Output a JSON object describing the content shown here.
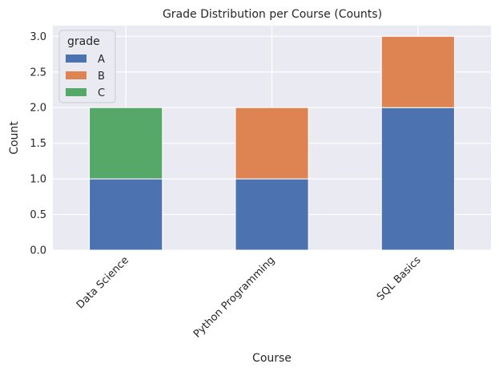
{
  "chart_data": {
    "type": "bar",
    "stacked": true,
    "title": "Grade Distribution per Course (Counts)",
    "xlabel": "Course",
    "ylabel": "Count",
    "categories": [
      "Data Science",
      "Python Programming",
      "SQL Basics"
    ],
    "series": [
      {
        "name": "A",
        "values": [
          1,
          1,
          2
        ],
        "color": "#4c72b0"
      },
      {
        "name": "B",
        "values": [
          0,
          1,
          1
        ],
        "color": "#dd8452"
      },
      {
        "name": "C",
        "values": [
          1,
          0,
          0
        ],
        "color": "#55a868"
      }
    ],
    "ylim": [
      0,
      3.15
    ],
    "yticks": [
      "0.0",
      "0.5",
      "1.0",
      "1.5",
      "2.0",
      "2.5",
      "3.0"
    ],
    "grid": true,
    "legend": {
      "title": "grade",
      "position": "top-left"
    },
    "background_color": "#eaeaf2"
  }
}
